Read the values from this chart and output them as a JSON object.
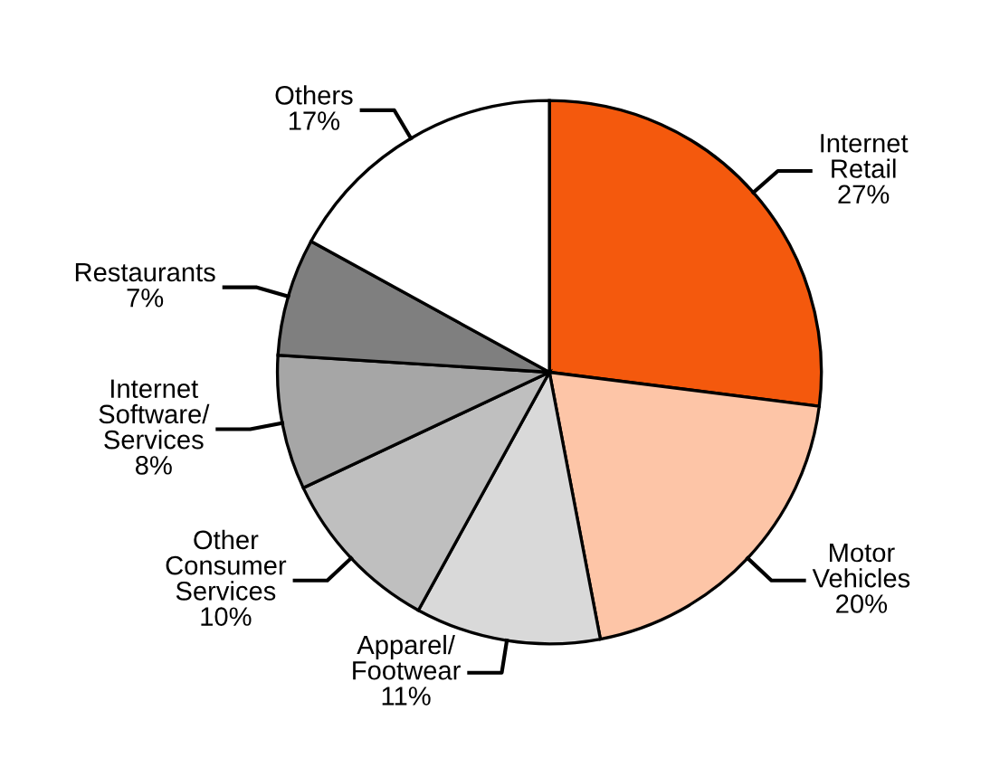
{
  "chart_data": {
    "type": "pie",
    "categories": [
      "Internet\nRetail",
      "Motor\nVehicles",
      "Apparel/\nFootwear",
      "Other\nConsumer\nServices",
      "Internet\nSoftware/\nServices",
      "Restaurants",
      "Others"
    ],
    "values": [
      27,
      20,
      11,
      10,
      8,
      7,
      17
    ],
    "value_labels": [
      "27%",
      "20%",
      "11%",
      "10%",
      "8%",
      "7%",
      "17%"
    ],
    "colors": [
      "#f4590d",
      "#fdc5a7",
      "#d9d9d9",
      "#bfbfbf",
      "#a6a6a6",
      "#7f7f7f",
      "#ffffff"
    ]
  }
}
